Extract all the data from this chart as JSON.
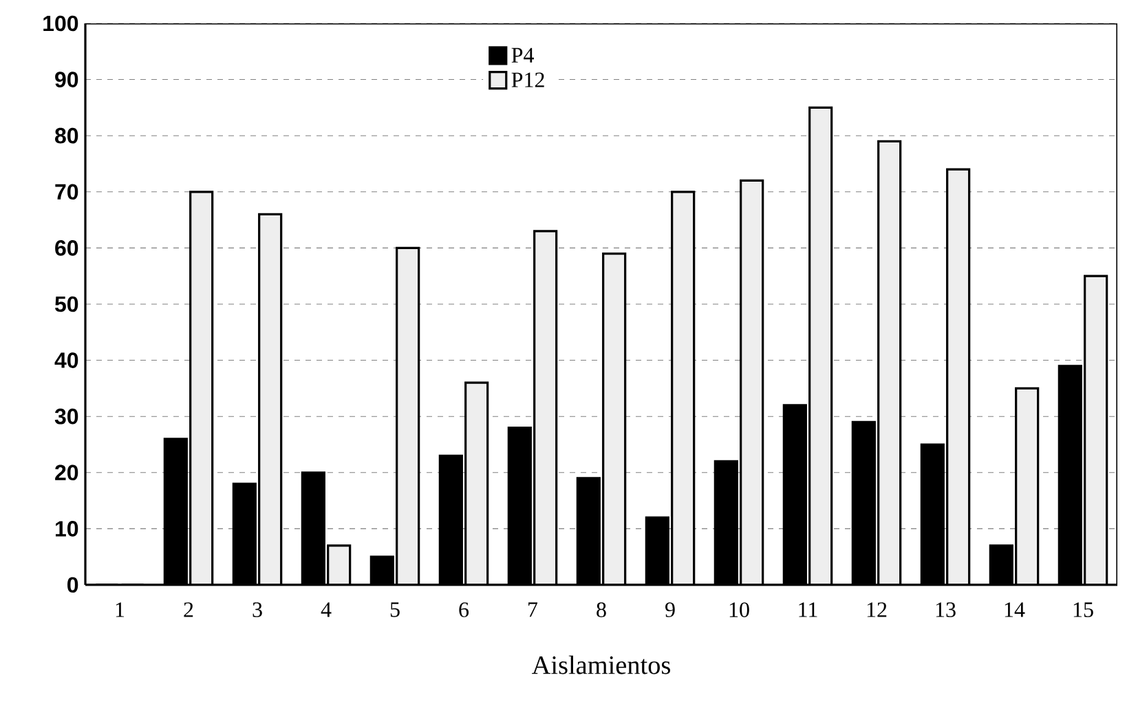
{
  "chart_data": {
    "type": "bar",
    "xlabel": "Aislamientos",
    "categories": [
      "1",
      "2",
      "3",
      "4",
      "5",
      "6",
      "7",
      "8",
      "9",
      "10",
      "11",
      "12",
      "13",
      "14",
      "15"
    ],
    "series": [
      {
        "name": "P4",
        "color": "#000000",
        "values": [
          0,
          26,
          18,
          20,
          5,
          23,
          28,
          19,
          12,
          22,
          32,
          29,
          25,
          7,
          39
        ]
      },
      {
        "name": "P12",
        "color": "#eeeeee",
        "values": [
          0,
          70,
          66,
          7,
          60,
          36,
          63,
          59,
          70,
          72,
          85,
          79,
          74,
          35,
          55
        ]
      }
    ],
    "ylim": [
      0,
      100
    ],
    "yticks": [
      0,
      10,
      20,
      30,
      40,
      50,
      60,
      70,
      80,
      90,
      100
    ],
    "grid": "y",
    "legend": "top"
  }
}
